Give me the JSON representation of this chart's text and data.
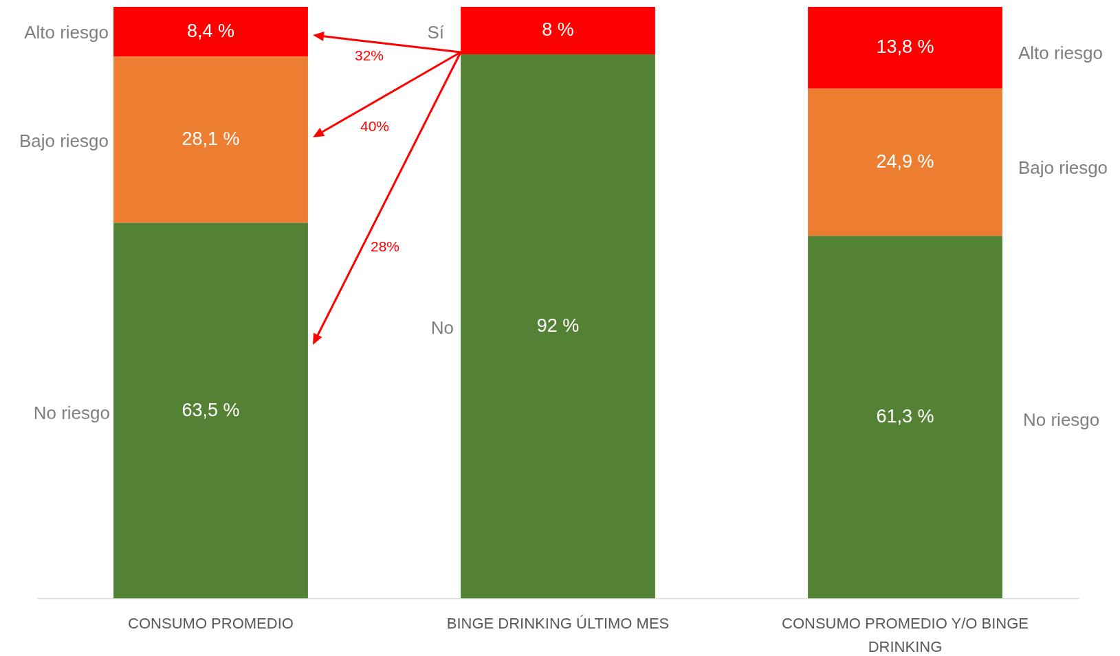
{
  "chart_data": {
    "type": "bar",
    "stacked": true,
    "tick_labels": "x",
    "categories": [
      "CONSUMO PROMEDIO",
      "BINGE DRINKING ÚLTIMO MES",
      "CONSUMO PROMEDIO Y/O BINGE DRINKING"
    ],
    "series": [
      {
        "color": "#548235",
        "values": [
          63.5,
          92,
          61.3
        ],
        "value_labels": [
          "63,5 %",
          "92 %",
          "61,3  %"
        ]
      },
      {
        "color": "#ed7d31",
        "values": [
          28.1,
          null,
          24.9
        ],
        "value_labels": [
          "28,1 %",
          null,
          "24,9  %"
        ]
      },
      {
        "color": "#ff0000",
        "values": [
          8.4,
          8,
          13.8
        ],
        "value_labels": [
          "8,4  %",
          "8  %",
          "13,8  %"
        ]
      }
    ],
    "annotations": [
      "Alto riesgo",
      "Bajo riesgo",
      "No riesgo",
      "Sí",
      "No",
      "Alto riesgo",
      "Bajo riesgo",
      "No riesgo",
      "32%",
      "40%",
      "28%"
    ]
  }
}
